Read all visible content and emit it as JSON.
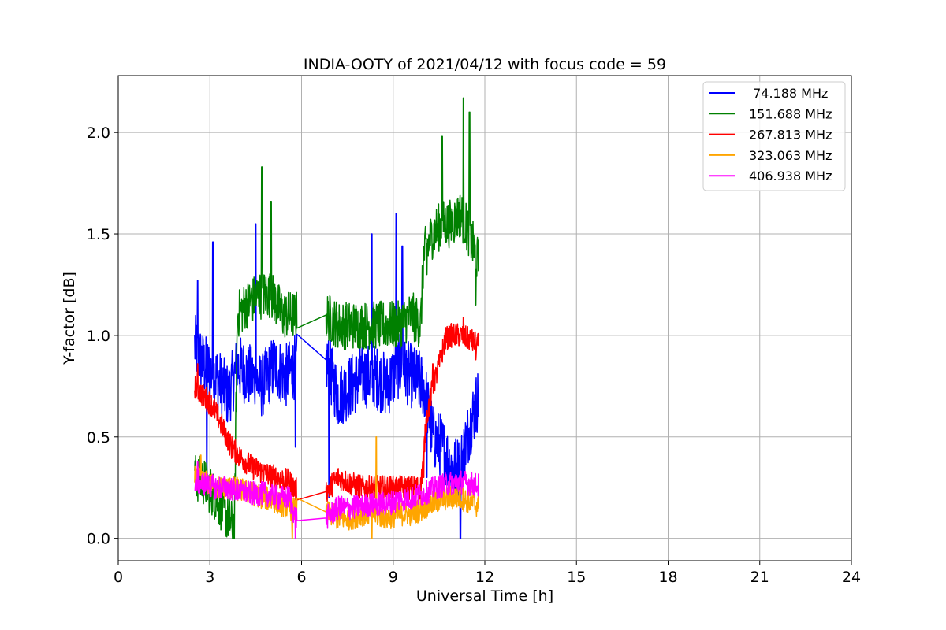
{
  "chart_data": {
    "type": "line",
    "title": "INDIA-OOTY of 2021/04/12 with focus code = 59",
    "xlabel": "Universal Time [h]",
    "ylabel": "Y-factor [dB]",
    "xlim": [
      0,
      24
    ],
    "ylim": [
      -0.11,
      2.28
    ],
    "xticks": [
      0,
      3,
      6,
      9,
      12,
      15,
      18,
      21,
      24
    ],
    "yticks": [
      0.0,
      0.5,
      1.0,
      1.5,
      2.0
    ],
    "xtick_labels": [
      "0",
      "3",
      "6",
      "9",
      "12",
      "15",
      "18",
      "21",
      "24"
    ],
    "ytick_labels": [
      "0.0",
      "0.5",
      "1.0",
      "1.5",
      "2.0"
    ],
    "grid": true,
    "legend_position": "top-right",
    "series": [
      {
        "name": " 74.188 MHz",
        "color": "#0000ff",
        "x": [
          2.5,
          2.8,
          3.2,
          3.6,
          3.9,
          4.3,
          4.7,
          5.1,
          5.5,
          5.8,
          6.8,
          7.2,
          7.6,
          8.0,
          8.4,
          8.8,
          9.2,
          9.6,
          10.0,
          10.3,
          10.6,
          10.9,
          11.2,
          11.5,
          11.8
        ],
        "y": [
          0.95,
          0.85,
          0.8,
          0.7,
          0.85,
          0.8,
          0.75,
          0.85,
          0.8,
          0.85,
          0.88,
          0.7,
          0.75,
          0.8,
          0.8,
          0.75,
          0.85,
          0.8,
          0.75,
          0.5,
          0.45,
          0.35,
          0.35,
          0.55,
          0.7
        ],
        "peaks": [
          [
            2.6,
            1.27
          ],
          [
            3.1,
            1.46
          ],
          [
            4.5,
            1.55
          ],
          [
            8.3,
            1.5
          ],
          [
            9.1,
            1.6
          ],
          [
            9.3,
            1.44
          ]
        ],
        "dips": [
          [
            2.9,
            0.3
          ],
          [
            5.8,
            0.45
          ],
          [
            6.9,
            0.2
          ],
          [
            10.1,
            0.3
          ],
          [
            11.2,
            0.0
          ]
        ]
      },
      {
        "name": "151.688 MHz",
        "color": "#008000",
        "x": [
          2.5,
          2.8,
          3.2,
          3.5,
          3.8,
          3.9,
          4.2,
          4.6,
          5.0,
          5.4,
          5.8,
          6.8,
          7.2,
          7.6,
          8.0,
          8.4,
          8.8,
          9.2,
          9.6,
          9.9,
          10.0,
          10.3,
          10.6,
          10.9,
          11.2,
          11.5,
          11.8
        ],
        "y": [
          0.3,
          0.28,
          0.2,
          0.12,
          0.05,
          1.1,
          1.15,
          1.2,
          1.2,
          1.1,
          1.1,
          1.1,
          1.05,
          1.05,
          1.05,
          1.05,
          1.05,
          1.05,
          1.1,
          1.05,
          1.4,
          1.5,
          1.55,
          1.55,
          1.6,
          1.5,
          1.35
        ],
        "peaks": [
          [
            4.7,
            1.83
          ],
          [
            5.0,
            1.66
          ],
          [
            10.6,
            1.98
          ],
          [
            11.3,
            2.17
          ],
          [
            11.5,
            2.1
          ]
        ],
        "dips": [
          [
            3.8,
            0.0
          ],
          [
            10.1,
            1.3
          ],
          [
            11.7,
            1.15
          ]
        ]
      },
      {
        "name": "267.813 MHz",
        "color": "#ff0000",
        "x": [
          2.5,
          2.8,
          3.1,
          3.4,
          3.7,
          4.0,
          4.4,
          4.8,
          5.2,
          5.6,
          5.8,
          6.8,
          7.2,
          7.6,
          8.0,
          8.4,
          8.8,
          9.2,
          9.6,
          9.9,
          10.1,
          10.3,
          10.5,
          10.7,
          10.9,
          11.2,
          11.5,
          11.8
        ],
        "y": [
          0.75,
          0.7,
          0.65,
          0.55,
          0.45,
          0.4,
          0.35,
          0.32,
          0.3,
          0.28,
          0.24,
          0.23,
          0.3,
          0.27,
          0.25,
          0.25,
          0.25,
          0.25,
          0.25,
          0.25,
          0.6,
          0.75,
          0.85,
          0.98,
          1.0,
          1.0,
          0.98,
          0.95
        ],
        "peaks": [
          [
            2.6,
            0.86
          ],
          [
            10.3,
            0.86
          ],
          [
            11.3,
            1.09
          ]
        ],
        "dips": [
          [
            10.0,
            0.3
          ],
          [
            11.7,
            0.88
          ]
        ]
      },
      {
        "name": "323.063 MHz",
        "color": "#ffa500",
        "x": [
          2.5,
          2.8,
          3.2,
          3.6,
          4.0,
          4.4,
          4.8,
          5.2,
          5.6,
          5.8,
          6.8,
          7.2,
          7.6,
          8.0,
          8.4,
          8.8,
          9.2,
          9.6,
          10.0,
          10.4,
          10.8,
          11.2,
          11.5,
          11.8
        ],
        "y": [
          0.3,
          0.28,
          0.25,
          0.25,
          0.24,
          0.22,
          0.2,
          0.18,
          0.15,
          0.14,
          0.13,
          0.1,
          0.1,
          0.12,
          0.12,
          0.1,
          0.12,
          0.12,
          0.15,
          0.18,
          0.2,
          0.2,
          0.18,
          0.16
        ],
        "peaks": [
          [
            2.7,
            0.41
          ],
          [
            8.45,
            0.5
          ]
        ],
        "dips": [
          [
            5.7,
            0.0
          ],
          [
            8.3,
            0.0
          ]
        ]
      },
      {
        "name": "406.938 MHz",
        "color": "#ff00ff",
        "x": [
          2.5,
          2.8,
          3.2,
          3.6,
          4.0,
          4.4,
          4.8,
          5.2,
          5.6,
          5.8,
          6.8,
          7.2,
          7.6,
          8.0,
          8.4,
          8.8,
          9.2,
          9.6,
          10.0,
          10.4,
          10.8,
          11.2,
          11.5,
          11.8
        ],
        "y": [
          0.28,
          0.27,
          0.25,
          0.25,
          0.23,
          0.22,
          0.22,
          0.2,
          0.2,
          0.1,
          0.1,
          0.15,
          0.15,
          0.16,
          0.17,
          0.17,
          0.19,
          0.2,
          0.22,
          0.25,
          0.27,
          0.28,
          0.27,
          0.26
        ],
        "peaks": [
          [
            2.6,
            0.38
          ]
        ],
        "dips": [
          [
            5.8,
            0.0
          ]
        ]
      }
    ]
  }
}
